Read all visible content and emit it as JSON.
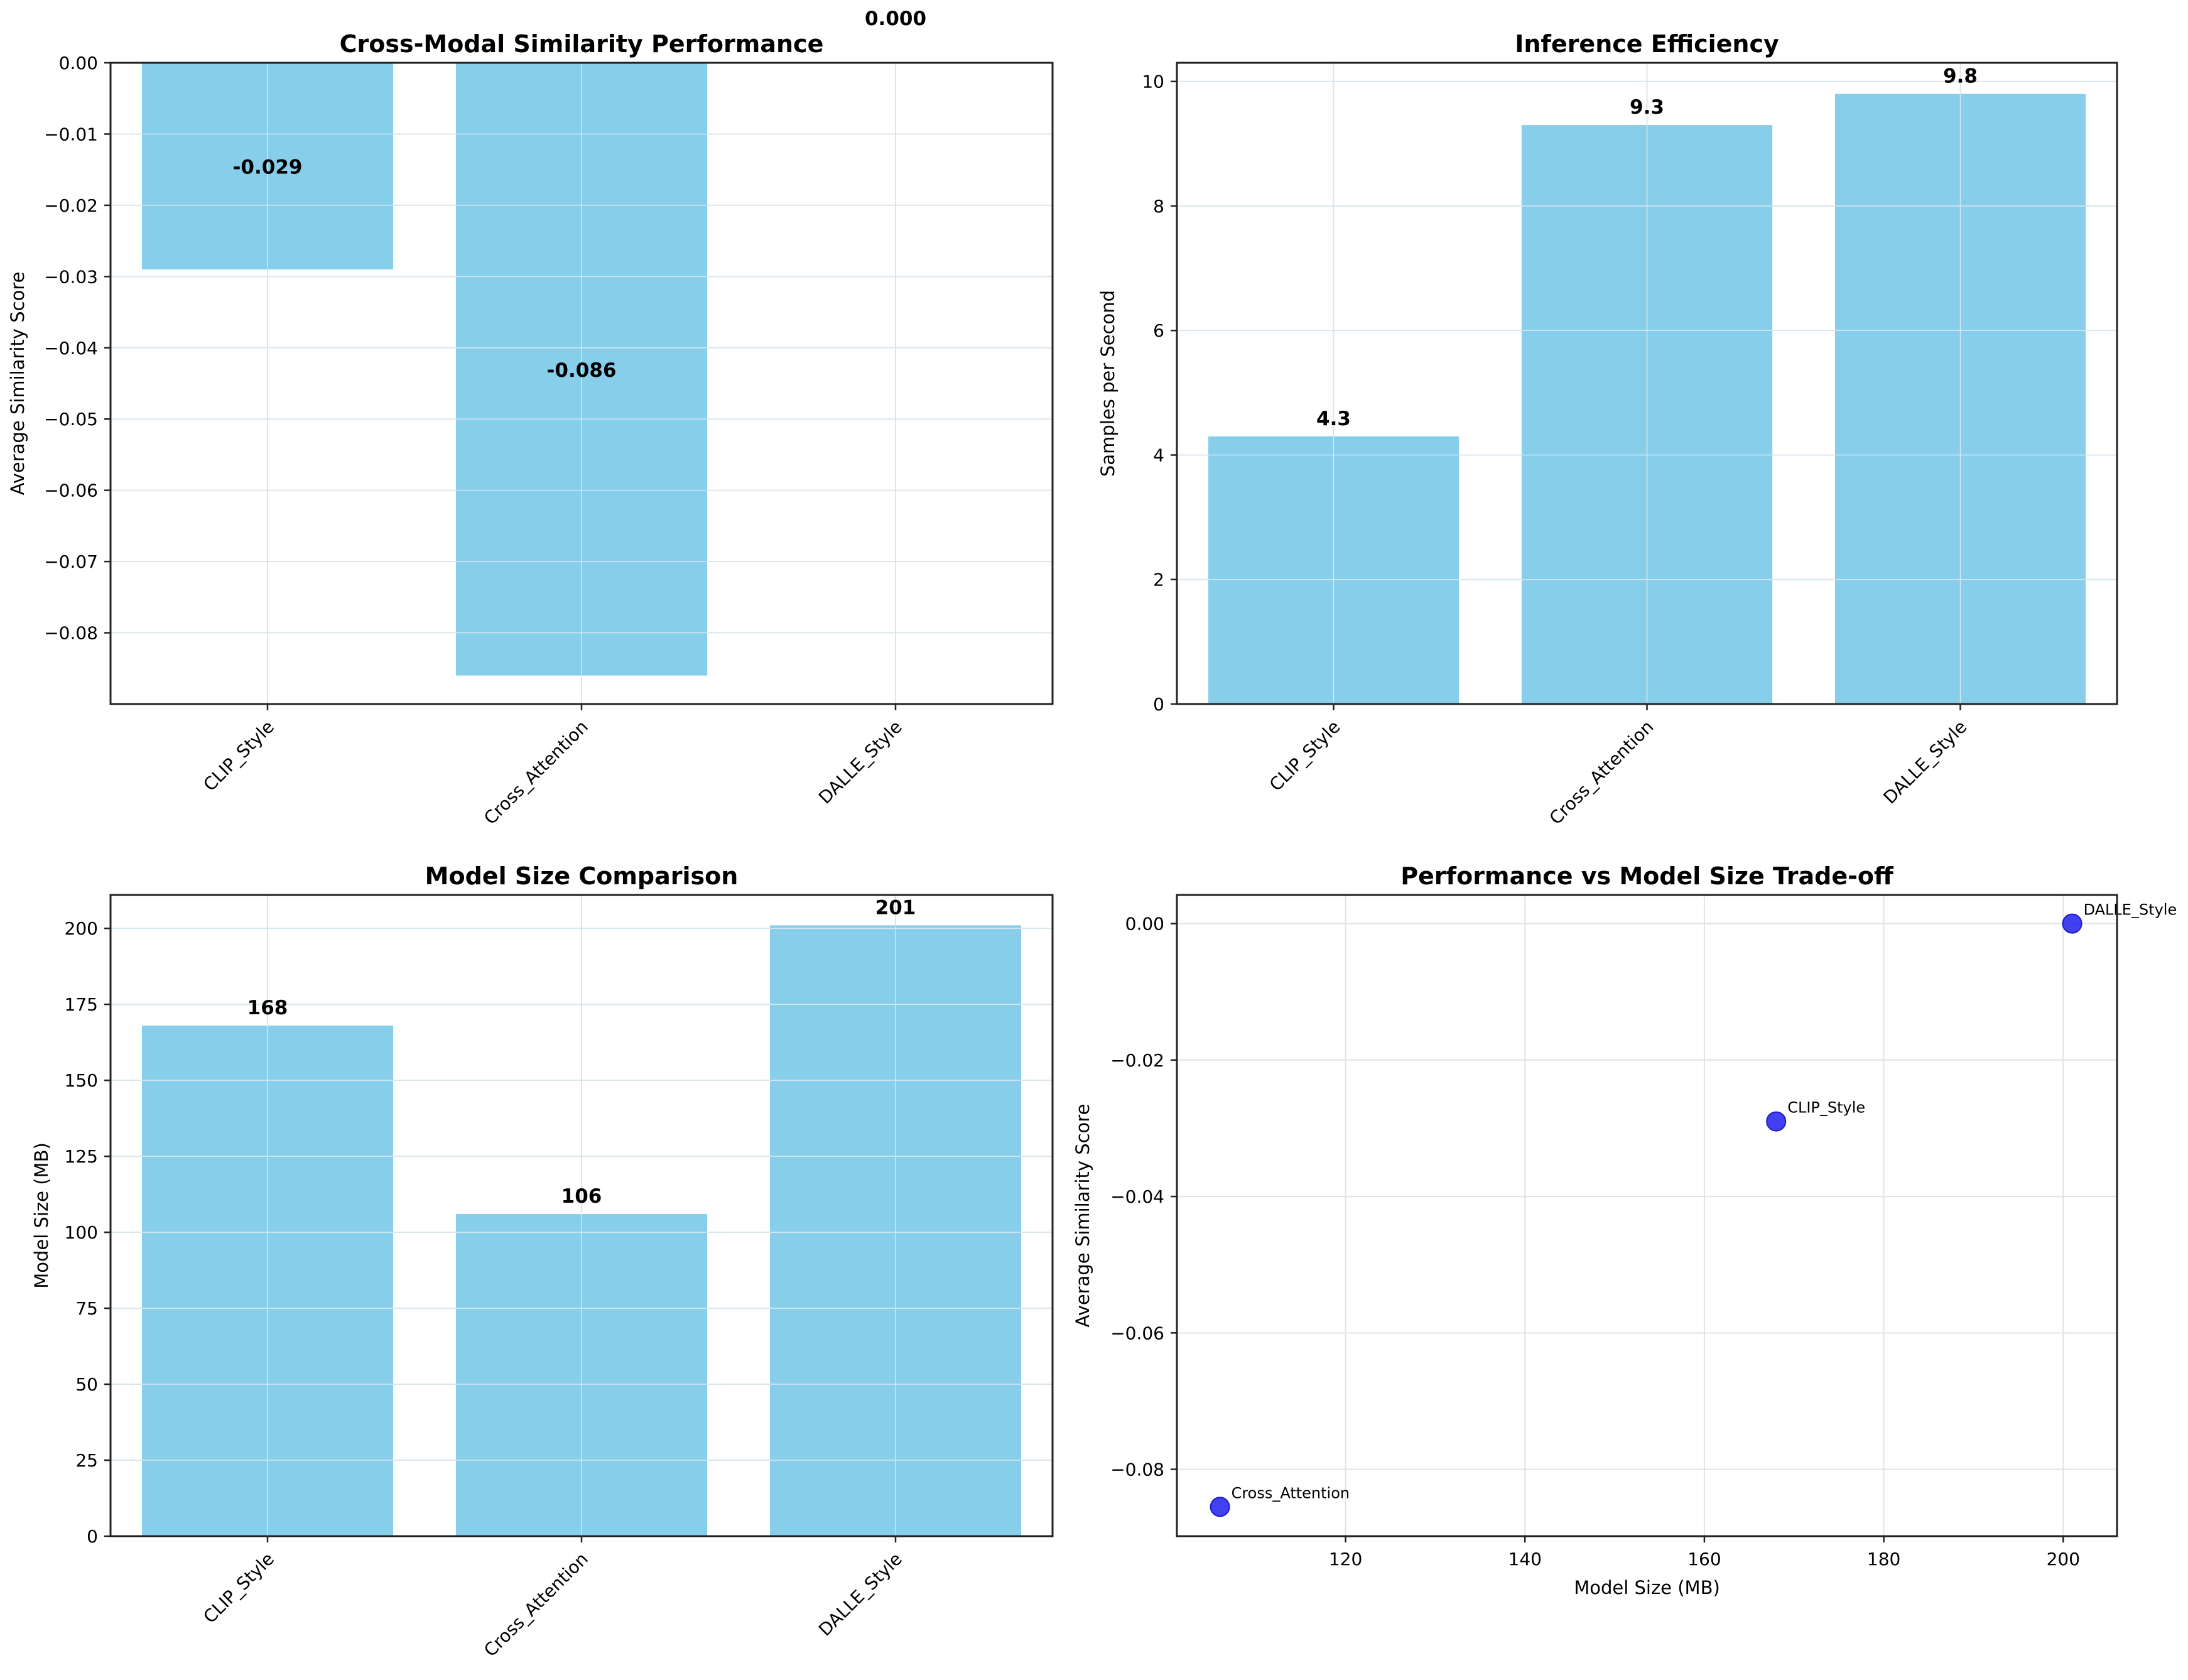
{
  "chart_data": [
    {
      "id": "similarity",
      "type": "bar",
      "title": "Cross-Modal Similarity Performance",
      "xlabel": "",
      "ylabel": "Average Similarity Score",
      "categories": [
        "CLIP_Style",
        "Cross_Attention",
        "DALLE_Style"
      ],
      "values": [
        -0.029,
        -0.086,
        0.0
      ],
      "value_labels": [
        "-0.029",
        "-0.086",
        "0.000"
      ],
      "ylim": [
        -0.09,
        0.0
      ],
      "yticks": [
        0.0,
        -0.01,
        -0.02,
        -0.03,
        -0.04,
        -0.05,
        -0.06,
        -0.07,
        -0.08
      ],
      "ytick_labels": [
        "0.00",
        "−0.01",
        "−0.02",
        "−0.03",
        "−0.04",
        "−0.05",
        "−0.06",
        "−0.07",
        "−0.08"
      ],
      "grid": true,
      "color": "#87ceeb"
    },
    {
      "id": "efficiency",
      "type": "bar",
      "title": "Inference Efficiency",
      "xlabel": "",
      "ylabel": "Samples per Second",
      "categories": [
        "CLIP_Style",
        "Cross_Attention",
        "DALLE_Style"
      ],
      "values": [
        4.3,
        9.3,
        9.8
      ],
      "value_labels": [
        "4.3",
        "9.3",
        "9.8"
      ],
      "ylim": [
        0,
        10.3
      ],
      "yticks": [
        0,
        2,
        4,
        6,
        8,
        10
      ],
      "ytick_labels": [
        "0",
        "2",
        "4",
        "6",
        "8",
        "10"
      ],
      "grid": true,
      "color": "#87ceeb"
    },
    {
      "id": "size",
      "type": "bar",
      "title": "Model Size Comparison",
      "xlabel": "",
      "ylabel": "Model Size (MB)",
      "categories": [
        "CLIP_Style",
        "Cross_Attention",
        "DALLE_Style"
      ],
      "values": [
        168,
        106,
        201
      ],
      "value_labels": [
        "168",
        "106",
        "201"
      ],
      "ylim": [
        0,
        211
      ],
      "yticks": [
        0,
        25,
        50,
        75,
        100,
        125,
        150,
        175,
        200
      ],
      "ytick_labels": [
        "0",
        "25",
        "50",
        "75",
        "100",
        "125",
        "150",
        "175",
        "200"
      ],
      "grid": true,
      "color": "#87ceeb"
    },
    {
      "id": "tradeoff",
      "type": "scatter",
      "title": "Performance vs Model Size Trade-off",
      "xlabel": "Model Size (MB)",
      "ylabel": "Average Similarity Score",
      "points": [
        {
          "label": "CLIP_Style",
          "x": 168,
          "y": -0.029
        },
        {
          "label": "Cross_Attention",
          "x": 106,
          "y": -0.0855
        },
        {
          "label": "DALLE_Style",
          "x": 201,
          "y": 0.0
        }
      ],
      "xlim": [
        101.2,
        206.0
      ],
      "ylim": [
        -0.0898,
        0.0042
      ],
      "xticks": [
        120,
        140,
        160,
        180,
        200
      ],
      "xtick_labels": [
        "120",
        "140",
        "160",
        "180",
        "200"
      ],
      "yticks": [
        0.0,
        -0.02,
        -0.04,
        -0.06,
        -0.08
      ],
      "ytick_labels": [
        "0.00",
        "−0.02",
        "−0.04",
        "−0.06",
        "−0.08"
      ],
      "grid": true,
      "color": "#2020ee"
    }
  ]
}
